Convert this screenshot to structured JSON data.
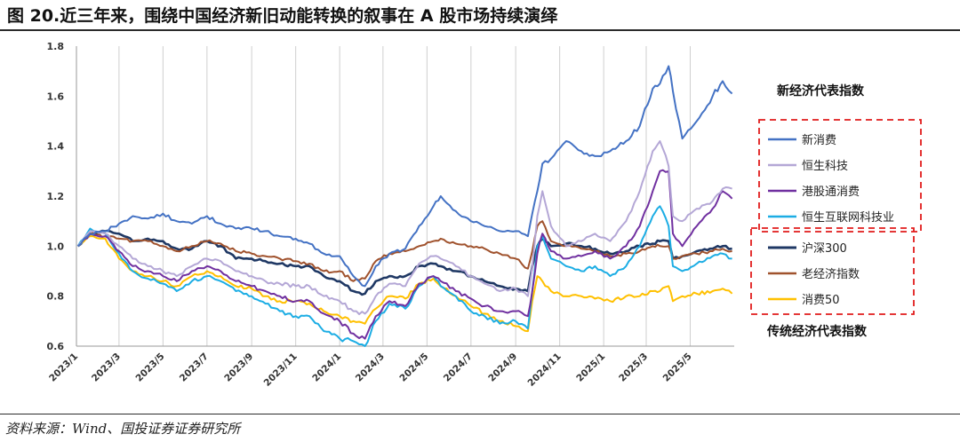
{
  "header": {
    "title": "图 20.近三年来，围绕中国经济新旧动能转换的叙事在 A 股市场持续演绎"
  },
  "footer": {
    "source": "资料来源：Wind、国投证券证券研究所"
  },
  "chart_data": {
    "type": "line",
    "title": "",
    "xlabel": "",
    "ylabel": "",
    "ylim": [
      0.6,
      1.8
    ],
    "yticks": [
      0.6,
      0.8,
      1.0,
      1.2,
      1.4,
      1.6,
      1.8
    ],
    "xlim": [
      "2023-01-01",
      "2025-07-01"
    ],
    "xticks": [
      {
        "date": "2023-01-01",
        "label": "2023/1"
      },
      {
        "date": "2023-03-01",
        "label": "2023/3"
      },
      {
        "date": "2023-05-01",
        "label": "2023/5"
      },
      {
        "date": "2023-07-01",
        "label": "2023/7"
      },
      {
        "date": "2023-09-01",
        "label": "2023/9"
      },
      {
        "date": "2023-11-01",
        "label": "2023/11"
      },
      {
        "date": "2024-01-01",
        "label": "2024/1"
      },
      {
        "date": "2024-03-01",
        "label": "2024/3"
      },
      {
        "date": "2024-05-01",
        "label": "2024/5"
      },
      {
        "date": "2024-07-01",
        "label": "2024/7"
      },
      {
        "date": "2024-09-01",
        "label": "2024/9"
      },
      {
        "date": "2024-11-01",
        "label": "2024/11"
      },
      {
        "date": "2025-01-01",
        "label": "2025/1"
      },
      {
        "date": "2025-03-01",
        "label": "2025/3"
      },
      {
        "date": "2025-05-01",
        "label": "2025/5"
      }
    ],
    "grid": {
      "vertical": true,
      "horizontal": false
    },
    "legend_position": "right",
    "legend_groups": [
      {
        "title": "新经济代表指数",
        "title_position": "above",
        "series_names": [
          "新消费",
          "恒生科技",
          "港股通消费",
          "恒生互联网科技业"
        ]
      },
      {
        "title": "传统经济代表指数",
        "title_position": "below",
        "series_names": [
          "沪深300",
          "老经济指数",
          "消费50"
        ]
      }
    ],
    "x": [
      "2023-01-03",
      "2023-01-20",
      "2023-02-10",
      "2023-03-01",
      "2023-03-20",
      "2023-04-10",
      "2023-05-01",
      "2023-05-20",
      "2023-06-10",
      "2023-07-01",
      "2023-07-20",
      "2023-08-10",
      "2023-09-01",
      "2023-09-20",
      "2023-10-10",
      "2023-11-01",
      "2023-11-20",
      "2023-12-10",
      "2024-01-01",
      "2024-01-20",
      "2024-02-05",
      "2024-02-20",
      "2024-03-10",
      "2024-04-01",
      "2024-04-20",
      "2024-05-10",
      "2024-05-20",
      "2024-06-10",
      "2024-07-01",
      "2024-07-20",
      "2024-08-10",
      "2024-09-01",
      "2024-09-18",
      "2024-09-24",
      "2024-10-01",
      "2024-10-08",
      "2024-10-20",
      "2024-11-10",
      "2024-12-01",
      "2024-12-20",
      "2025-01-10",
      "2025-02-01",
      "2025-02-20",
      "2025-03-10",
      "2025-03-20",
      "2025-04-01",
      "2025-04-07",
      "2025-04-20",
      "2025-05-10",
      "2025-06-01",
      "2025-06-15",
      "2025-06-28"
    ],
    "series": [
      {
        "name": "新消费",
        "color": "#4472C4",
        "values": [
          1.0,
          1.05,
          1.06,
          1.09,
          1.12,
          1.11,
          1.13,
          1.1,
          1.09,
          1.12,
          1.09,
          1.07,
          1.07,
          1.06,
          1.04,
          1.03,
          1.01,
          0.97,
          0.96,
          0.88,
          0.84,
          0.92,
          0.97,
          0.99,
          1.08,
          1.16,
          1.2,
          1.14,
          1.1,
          1.08,
          1.06,
          1.06,
          1.04,
          1.13,
          1.22,
          1.33,
          1.35,
          1.42,
          1.38,
          1.36,
          1.38,
          1.42,
          1.48,
          1.63,
          1.65,
          1.72,
          1.62,
          1.43,
          1.5,
          1.6,
          1.66,
          1.61
        ]
      },
      {
        "name": "恒生科技",
        "color": "#B4A7D6",
        "values": [
          1.0,
          1.06,
          1.05,
          1.0,
          0.95,
          0.92,
          0.9,
          0.88,
          0.92,
          0.95,
          0.94,
          0.9,
          0.88,
          0.86,
          0.85,
          0.84,
          0.84,
          0.8,
          0.78,
          0.74,
          0.73,
          0.8,
          0.85,
          0.84,
          0.93,
          0.96,
          0.95,
          0.92,
          0.88,
          0.85,
          0.82,
          0.83,
          0.8,
          0.92,
          1.12,
          1.22,
          1.08,
          1.0,
          1.02,
          1.05,
          1.02,
          1.1,
          1.22,
          1.38,
          1.42,
          1.32,
          1.12,
          1.1,
          1.15,
          1.18,
          1.23,
          1.23
        ]
      },
      {
        "name": "港股通消费",
        "color": "#7030A0",
        "values": [
          1.0,
          1.05,
          1.04,
          0.98,
          0.92,
          0.9,
          0.88,
          0.86,
          0.9,
          0.92,
          0.9,
          0.86,
          0.84,
          0.82,
          0.8,
          0.78,
          0.78,
          0.73,
          0.7,
          0.65,
          0.63,
          0.72,
          0.78,
          0.76,
          0.85,
          0.88,
          0.86,
          0.82,
          0.79,
          0.76,
          0.74,
          0.74,
          0.72,
          0.82,
          0.97,
          1.05,
          0.98,
          0.95,
          0.96,
          0.98,
          0.95,
          1.0,
          1.08,
          1.22,
          1.3,
          1.3,
          1.05,
          1.0,
          1.08,
          1.15,
          1.22,
          1.19
        ]
      },
      {
        "name": "恒生互联网科技业",
        "color": "#1CADE4",
        "values": [
          1.0,
          1.07,
          1.05,
          0.97,
          0.9,
          0.87,
          0.85,
          0.82,
          0.86,
          0.88,
          0.86,
          0.82,
          0.8,
          0.77,
          0.74,
          0.72,
          0.72,
          0.66,
          0.63,
          0.62,
          0.6,
          0.7,
          0.77,
          0.75,
          0.84,
          0.88,
          0.84,
          0.8,
          0.74,
          0.72,
          0.69,
          0.7,
          0.67,
          0.82,
          1.0,
          1.04,
          0.95,
          0.92,
          0.9,
          0.92,
          0.88,
          0.92,
          1.0,
          1.12,
          1.16,
          1.08,
          0.92,
          0.9,
          0.93,
          0.96,
          0.97,
          0.95
        ]
      },
      {
        "name": "沪深300",
        "color": "#1F3864",
        "values": [
          1.0,
          1.05,
          1.06,
          1.05,
          1.02,
          1.03,
          1.02,
          0.99,
          0.99,
          1.02,
          1.0,
          0.95,
          0.95,
          0.94,
          0.93,
          0.92,
          0.92,
          0.88,
          0.86,
          0.82,
          0.81,
          0.86,
          0.88,
          0.88,
          0.92,
          0.93,
          0.92,
          0.9,
          0.88,
          0.86,
          0.84,
          0.83,
          0.82,
          0.92,
          1.0,
          1.03,
          1.0,
          1.01,
          1.0,
          0.99,
          0.97,
          0.98,
          1.0,
          1.01,
          1.02,
          1.02,
          0.95,
          0.96,
          0.98,
          0.99,
          1.0,
          0.99
        ]
      },
      {
        "name": "老经济指数",
        "color": "#A0522D",
        "values": [
          1.0,
          1.05,
          1.04,
          1.03,
          1.02,
          1.02,
          1.0,
          0.98,
          1.0,
          1.02,
          1.01,
          0.98,
          0.97,
          0.96,
          0.95,
          0.94,
          0.93,
          0.9,
          0.9,
          0.86,
          0.87,
          0.94,
          0.97,
          0.98,
          1.0,
          1.02,
          1.03,
          1.01,
          1.0,
          0.99,
          0.97,
          0.95,
          0.91,
          0.98,
          1.08,
          1.1,
          1.02,
          1.0,
          0.99,
          0.98,
          0.96,
          0.97,
          0.98,
          1.0,
          1.0,
          1.0,
          0.95,
          0.96,
          0.97,
          0.98,
          0.99,
          0.98
        ]
      },
      {
        "name": "消费50",
        "color": "#FFC000",
        "values": [
          1.0,
          1.04,
          1.03,
          0.95,
          0.9,
          0.88,
          0.86,
          0.84,
          0.88,
          0.9,
          0.88,
          0.84,
          0.83,
          0.8,
          0.78,
          0.78,
          0.77,
          0.74,
          0.72,
          0.7,
          0.69,
          0.75,
          0.8,
          0.79,
          0.85,
          0.87,
          0.84,
          0.8,
          0.76,
          0.73,
          0.7,
          0.68,
          0.66,
          0.78,
          0.88,
          0.86,
          0.82,
          0.8,
          0.8,
          0.79,
          0.78,
          0.8,
          0.8,
          0.82,
          0.82,
          0.84,
          0.78,
          0.8,
          0.81,
          0.82,
          0.83,
          0.81
        ]
      }
    ]
  }
}
